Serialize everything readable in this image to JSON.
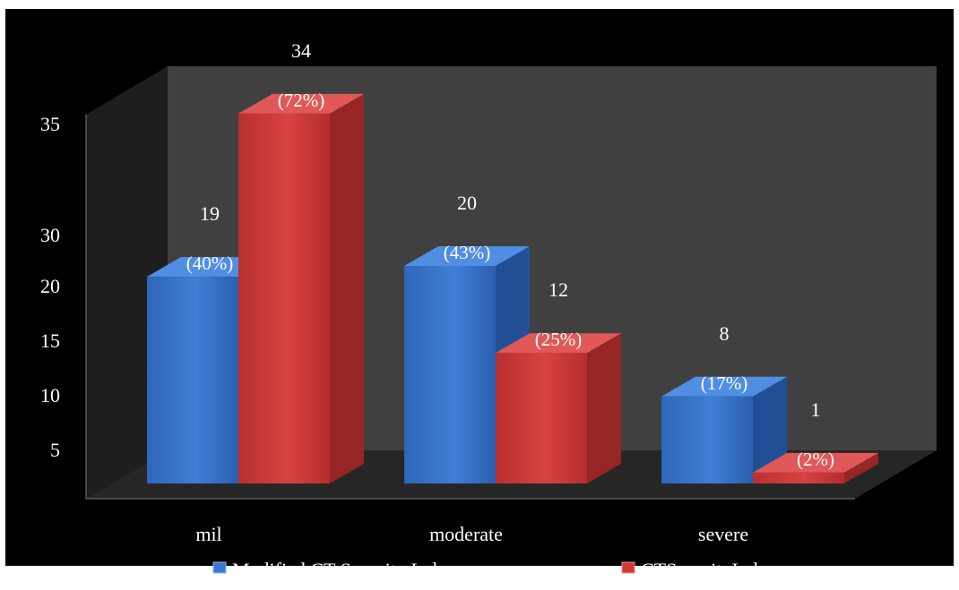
{
  "chart_data": {
    "type": "bar",
    "categories": [
      "mil",
      "moderate",
      "severe"
    ],
    "series": [
      {
        "name": "Modified CT Severity Index",
        "values": [
          19,
          20,
          8
        ],
        "percent_labels": [
          "(40%)",
          "(43%)",
          "(17%)"
        ],
        "color": "#3a78d0"
      },
      {
        "name": "CTSeverityIndex",
        "values": [
          34,
          12,
          1
        ],
        "percent_labels": [
          "(72%)",
          "(25%)",
          "(2%)"
        ],
        "color": "#cf3a3a"
      }
    ],
    "y_ticks": [
      "5",
      "10",
      "15",
      "20",
      "30",
      "35"
    ],
    "ylim": [
      0,
      35
    ],
    "grid": false,
    "legend_position": "bottom",
    "style": "3d-clustered-column",
    "background": "#000000",
    "back_wall_color": "#404040",
    "side_wall_color": "#1e1e1e",
    "floor_color": "#262626"
  }
}
